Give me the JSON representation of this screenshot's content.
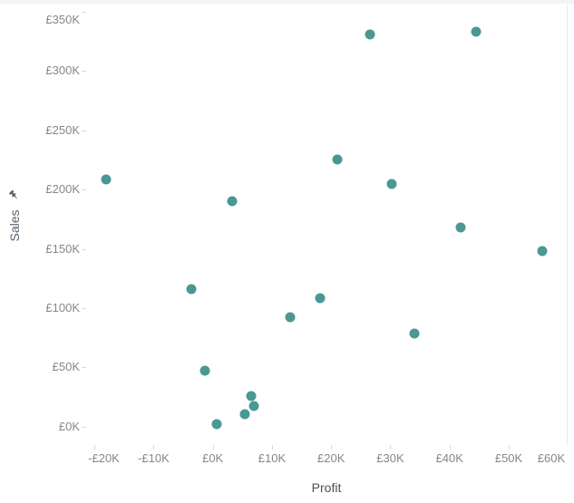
{
  "chart_data": {
    "type": "scatter",
    "title": "",
    "xlabel": "Profit",
    "ylabel": "Sales",
    "currency": "GBP",
    "marker_color": "#499894",
    "grid": "off",
    "x_range_k": [
      -21.4,
      59.8
    ],
    "y_range_k": [
      -15.4,
      356.1
    ],
    "x_ticks": {
      "values_k": [
        -20,
        -10,
        0,
        10,
        20,
        30,
        40,
        50,
        60
      ],
      "labels": [
        "-£20K",
        "-£10K",
        "£0K",
        "£10K",
        "£20K",
        "£30K",
        "£40K",
        "£50K",
        "£60K"
      ]
    },
    "y_ticks": {
      "values_k": [
        0,
        50,
        100,
        150,
        200,
        250,
        300,
        350
      ],
      "labels": [
        "£0K",
        "£50K",
        "£100K",
        "£150K",
        "£200K",
        "£250K",
        "£300K",
        "£350K"
      ]
    },
    "points": [
      {
        "profit_k": -18.0,
        "sales_k": 208.8
      },
      {
        "profit_k": 3.2,
        "sales_k": 190.4
      },
      {
        "profit_k": 26.5,
        "sales_k": 331.1
      },
      {
        "profit_k": 44.5,
        "sales_k": 333.4
      },
      {
        "profit_k": 21.1,
        "sales_k": 225.6
      },
      {
        "profit_k": 30.2,
        "sales_k": 205.0
      },
      {
        "profit_k": 41.8,
        "sales_k": 168.3
      },
      {
        "profit_k": 55.6,
        "sales_k": 148.4
      },
      {
        "profit_k": -3.6,
        "sales_k": 115.8
      },
      {
        "profit_k": -1.3,
        "sales_k": 47.0
      },
      {
        "profit_k": 6.5,
        "sales_k": 26.1
      },
      {
        "profit_k": 5.4,
        "sales_k": 10.8
      },
      {
        "profit_k": 7.0,
        "sales_k": 17.2
      },
      {
        "profit_k": 0.7,
        "sales_k": 1.9
      },
      {
        "profit_k": 18.1,
        "sales_k": 108.2
      },
      {
        "profit_k": 13.0,
        "sales_k": 92.1
      },
      {
        "profit_k": 34.1,
        "sales_k": 78.8
      }
    ]
  },
  "axes": {
    "x_title": "Profit",
    "y_title": "Sales",
    "y_axis_pinned": true
  },
  "icons": {
    "pin": "pushpin-icon",
    "pin_color": "#55606b"
  }
}
